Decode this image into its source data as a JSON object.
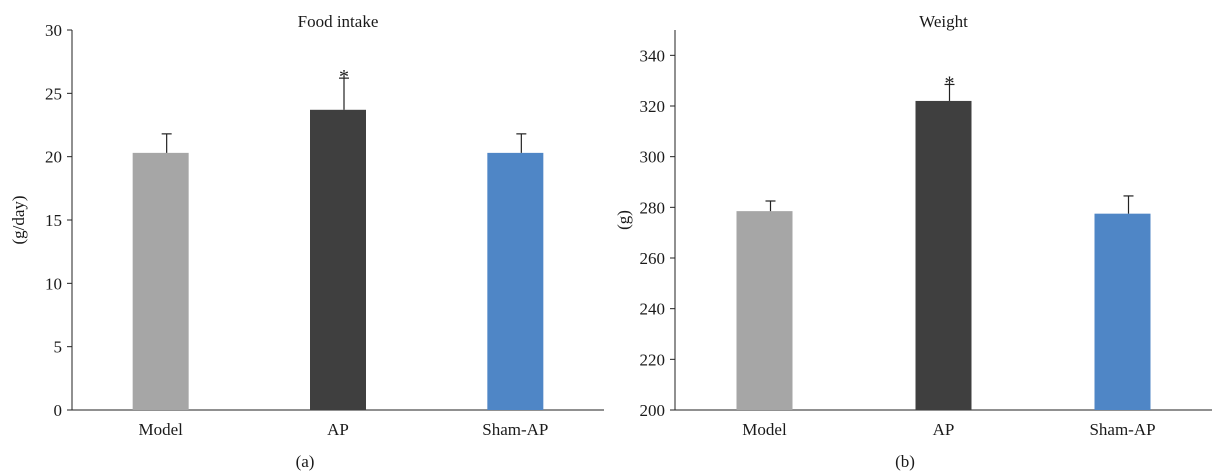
{
  "figure": {
    "panel_labels": [
      "(a)",
      "(b)"
    ]
  },
  "chart_data": [
    {
      "type": "bar",
      "title": "Food intake",
      "xlabel": "",
      "ylabel": "(g/day)",
      "categories": [
        "Model",
        "AP",
        "Sham-AP"
      ],
      "values": [
        20.3,
        23.7,
        20.3
      ],
      "errors": [
        1.5,
        2.5,
        1.5
      ],
      "significance": [
        "",
        "*",
        ""
      ],
      "ylim": [
        0,
        30
      ],
      "yticks": [
        0,
        5,
        10,
        15,
        20,
        25,
        30
      ],
      "colors": [
        "#a6a6a6",
        "#3f3f3f",
        "#4f86c6"
      ],
      "grid": false
    },
    {
      "type": "bar",
      "title": "Weight",
      "xlabel": "",
      "ylabel": "(g)",
      "categories": [
        "Model",
        "AP",
        "Sham-AP"
      ],
      "values": [
        278.5,
        322,
        277.5
      ],
      "errors": [
        4,
        6.5,
        7
      ],
      "significance": [
        "",
        "*",
        ""
      ],
      "ylim": [
        200,
        350
      ],
      "yticks": [
        200,
        220,
        240,
        260,
        280,
        300,
        320,
        340
      ],
      "colors": [
        "#a6a6a6",
        "#3f3f3f",
        "#4f86c6"
      ],
      "grid": false
    }
  ]
}
